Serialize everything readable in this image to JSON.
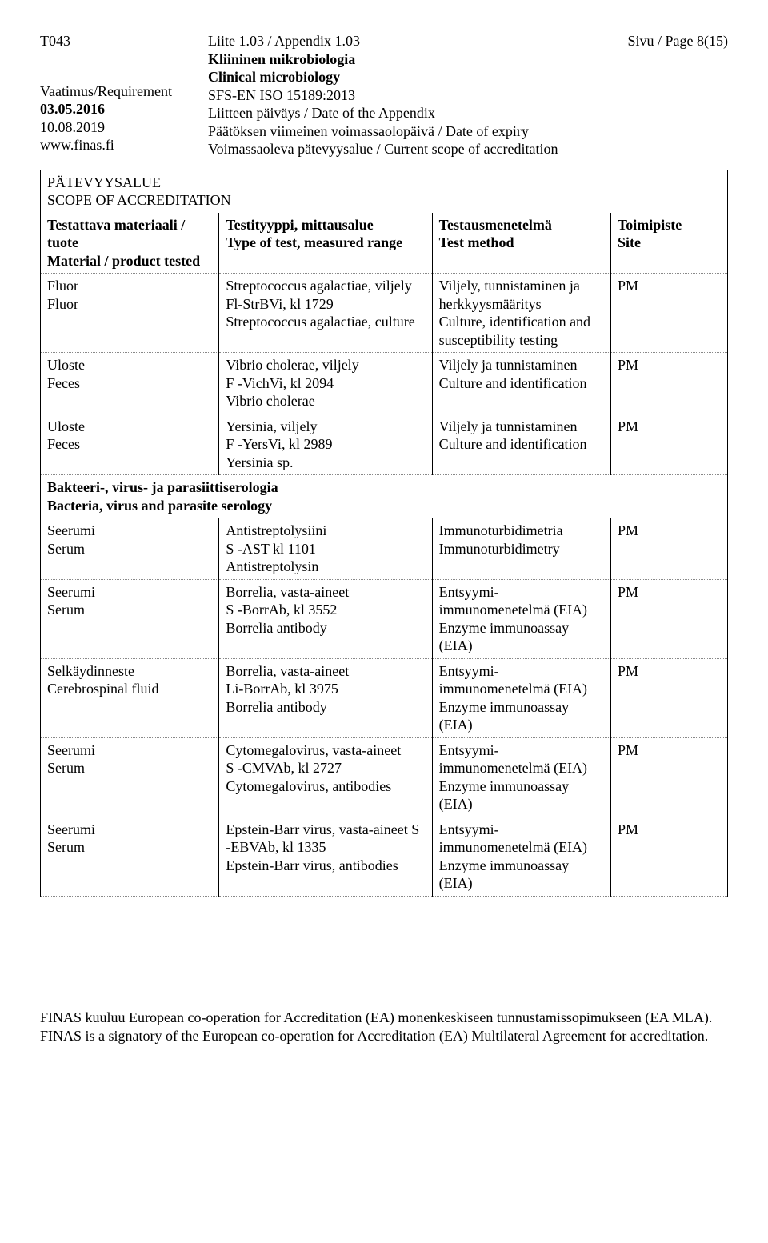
{
  "header": {
    "left": {
      "code": "T043",
      "req_label": "Vaatimus/Requirement",
      "date1": "03.05.2016",
      "date2": "10.08.2019",
      "url": "www.finas.fi"
    },
    "mid": {
      "appendix": "Liite 1.03 / Appendix 1.03",
      "sub1": "Kliininen mikrobiologia",
      "sub2": "Clinical microbiology",
      "standard": "SFS-EN ISO 15189:2013",
      "line1": "Liitteen päiväys / Date of the Appendix",
      "line2": "Päätöksen viimeinen voimassaolopäivä / Date of expiry",
      "line3": "Voimassaoleva pätevyysalue / Current scope of accreditation"
    },
    "right": {
      "page": "Sivu / Page 8(15)"
    }
  },
  "table": {
    "title1": "PÄTEVYYSALUE",
    "title2": "SCOPE OF ACCREDITATION",
    "head": {
      "c1a": "Testattava materiaali / tuote",
      "c1b": "Material / product tested",
      "c2a": "Testityyppi, mittausalue",
      "c2b": "Type of test, measured range",
      "c3a": "Testausmenetelmä",
      "c3b": "Test method",
      "c4a": "Toimipiste",
      "c4b": "Site"
    },
    "rows": [
      {
        "c1": "Fluor\nFluor",
        "c2": "Streptococcus agalactiae, viljely\nFl-StrBVi, kl 1729\nStreptococcus agalactiae, culture",
        "c3": "Viljely, tunnistaminen ja herkkyysmääritys\nCulture, identification and susceptibility testing",
        "c4": "PM"
      },
      {
        "c1": "Uloste\nFeces",
        "c2": "Vibrio cholerae, viljely\nF -VichVi, kl 2094\nVibrio cholerae",
        "c3": "Viljely ja tunnistaminen\nCulture and identification",
        "c4": "PM"
      },
      {
        "c1": "Uloste\nFeces",
        "c2": "Yersinia, viljely\nF -YersVi, kl 2989\nYersinia sp.",
        "c3": "Viljely ja tunnistaminen\nCulture and identification",
        "c4": "PM"
      }
    ],
    "section": {
      "l1": "Bakteeri-, virus- ja parasiittiserologia",
      "l2": "Bacteria, virus and parasite serology"
    },
    "rows2": [
      {
        "c1": "Seerumi\nSerum",
        "c2": "Antistreptolysiini\nS -AST kl 1101\nAntistreptolysin",
        "c3": "Immunoturbidimetria\nImmunoturbidimetry",
        "c4": "PM"
      },
      {
        "c1": "Seerumi\nSerum",
        "c2": "Borrelia, vasta-aineet\nS -BorrAb, kl 3552\nBorrelia antibody",
        "c3": "Entsyymi-immunomenetelmä (EIA)\nEnzyme immunoassay (EIA)",
        "c4": "PM"
      },
      {
        "c1": "Selkäydinneste\nCerebrospinal fluid",
        "c2": "Borrelia, vasta-aineet\nLi-BorrAb, kl 3975\nBorrelia antibody",
        "c3": "Entsyymi-immunomenetelmä (EIA)\nEnzyme immunoassay (EIA)",
        "c4": "PM"
      },
      {
        "c1": "Seerumi\nSerum",
        "c2": "Cytomegalovirus, vasta-aineet\nS -CMVAb, kl 2727\nCytomegalovirus, antibodies",
        "c3": "Entsyymi-immunomenetelmä (EIA)\nEnzyme immunoassay (EIA)",
        "c4": "PM"
      },
      {
        "c1": "Seerumi\nSerum",
        "c2": "Epstein-Barr virus, vasta-aineet S -EBVAb, kl 1335\nEpstein-Barr virus, antibodies",
        "c3": "Entsyymi-immunomenetelmä (EIA)\nEnzyme immunoassay (EIA)",
        "c4": "PM"
      }
    ]
  },
  "footer": {
    "l1": "FINAS kuuluu European co-operation for Accreditation (EA) monenkeskiseen tunnustamissopimukseen (EA MLA).",
    "l2": "FINAS is a signatory of the European co-operation for Accreditation (EA) Multilateral Agreement for accreditation."
  }
}
